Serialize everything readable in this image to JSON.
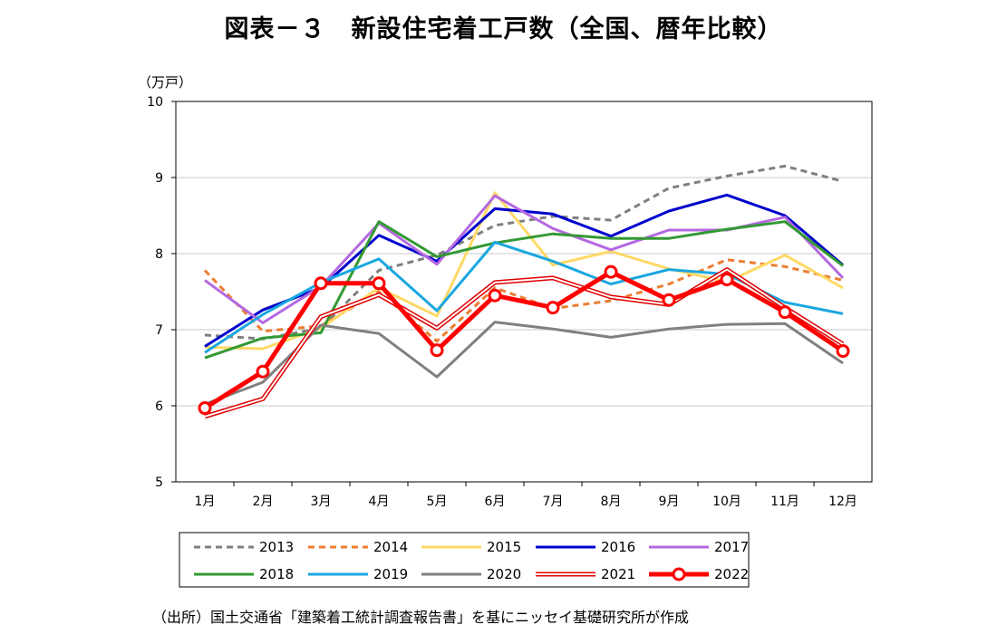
{
  "title": "図表－３　新設住宅着工戸数（全国、暦年比較）",
  "source": "（出所）国土交通省「建築着工統計調査報告書」を基にニッセイ基礎研究所が作成",
  "chart_data": {
    "type": "line",
    "ylabel": "（万戸）",
    "ylim": [
      5,
      10
    ],
    "yticks": [
      "5",
      "6",
      "7",
      "8",
      "9",
      "10"
    ],
    "grid": true,
    "legend_position": "bottom",
    "categories": [
      "1月",
      "2月",
      "3月",
      "4月",
      "5月",
      "6月",
      "7月",
      "8月",
      "9月",
      "10月",
      "11月",
      "12月"
    ],
    "series": [
      {
        "name": "2013",
        "color": "#7f7f7f",
        "style": "dashed",
        "values": [
          6.93,
          6.88,
          7.02,
          7.78,
          7.98,
          8.37,
          8.49,
          8.44,
          8.86,
          9.02,
          9.15,
          8.95
        ]
      },
      {
        "name": "2014",
        "color": "#ed7d31",
        "style": "dashed",
        "values": [
          7.78,
          6.98,
          7.05,
          7.5,
          6.85,
          7.55,
          7.28,
          7.38,
          7.6,
          7.92,
          7.83,
          7.65
        ]
      },
      {
        "name": "2015",
        "color": "#ffd966",
        "style": "solid",
        "values": [
          6.77,
          6.75,
          7.02,
          7.55,
          7.18,
          8.8,
          7.85,
          8.03,
          7.8,
          7.63,
          7.98,
          7.55
        ]
      },
      {
        "name": "2016",
        "color": "#0000cc",
        "style": "solid",
        "values": [
          6.78,
          7.26,
          7.55,
          8.24,
          7.9,
          8.59,
          8.52,
          8.23,
          8.56,
          8.77,
          8.5,
          7.85
        ]
      },
      {
        "name": "2017",
        "color": "#b469e0",
        "style": "solid",
        "values": [
          7.65,
          7.09,
          7.57,
          8.4,
          7.86,
          8.76,
          8.33,
          8.05,
          8.31,
          8.31,
          8.48,
          7.68
        ]
      },
      {
        "name": "2018",
        "color": "#339933",
        "style": "solid",
        "values": [
          6.63,
          6.89,
          6.96,
          8.42,
          7.96,
          8.14,
          8.26,
          8.2,
          8.2,
          8.32,
          8.42,
          7.84
        ]
      },
      {
        "name": "2019",
        "color": "#1aa7e0",
        "style": "solid",
        "values": [
          6.7,
          7.2,
          7.62,
          7.93,
          7.25,
          8.15,
          7.9,
          7.6,
          7.79,
          7.73,
          7.36,
          7.21
        ]
      },
      {
        "name": "2020",
        "color": "#808080",
        "style": "solid",
        "values": [
          6.02,
          6.31,
          7.06,
          6.95,
          6.38,
          7.1,
          7.01,
          6.9,
          7.01,
          7.07,
          7.08,
          6.56
        ]
      },
      {
        "name": "2021",
        "color": "#e00000",
        "style": "double",
        "values": [
          5.86,
          6.09,
          7.17,
          7.46,
          7.02,
          7.62,
          7.68,
          7.43,
          7.33,
          7.79,
          7.29,
          6.81
        ]
      },
      {
        "name": "2022",
        "color": "#ff0000",
        "style": "bold-marker",
        "values": [
          5.97,
          6.45,
          7.61,
          7.61,
          6.73,
          7.45,
          7.29,
          7.76,
          7.39,
          7.66,
          7.23,
          6.72
        ]
      }
    ]
  }
}
